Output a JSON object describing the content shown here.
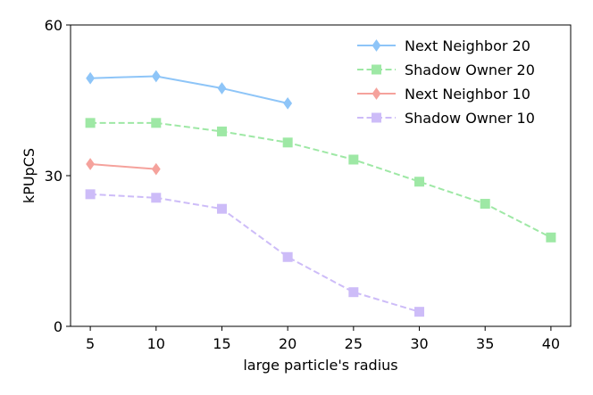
{
  "chart_data": {
    "type": "line",
    "xlabel": "large particle's radius",
    "ylabel": "kPUpCS",
    "xlim": [
      3.5,
      41.5
    ],
    "ylim": [
      0,
      60
    ],
    "xticks": [
      5,
      10,
      15,
      20,
      25,
      30,
      35,
      40
    ],
    "yticks": [
      0,
      30,
      60
    ],
    "grid": false,
    "legend_position": "top-right",
    "series": [
      {
        "name": "Next Neighbor 20",
        "color": "#8ec5f8",
        "marker": "diamond",
        "linestyle": "solid",
        "x": [
          5,
          10,
          15,
          20
        ],
        "y": [
          49.4,
          49.8,
          47.4,
          44.4
        ]
      },
      {
        "name": "Shadow Owner 20",
        "color": "#9ee8a5",
        "marker": "square",
        "linestyle": "dashed",
        "x": [
          5,
          10,
          15,
          20,
          25,
          30,
          35,
          40
        ],
        "y": [
          40.5,
          40.5,
          38.8,
          36.6,
          33.2,
          28.8,
          24.4,
          17.7
        ]
      },
      {
        "name": "Next Neighbor 10",
        "color": "#f5a29c",
        "marker": "diamond",
        "linestyle": "solid",
        "x": [
          5,
          10
        ],
        "y": [
          32.3,
          31.3
        ]
      },
      {
        "name": "Shadow Owner 10",
        "color": "#cdbcf8",
        "marker": "square",
        "linestyle": "dashed",
        "x": [
          5,
          10,
          15,
          20,
          25,
          30
        ],
        "y": [
          26.3,
          25.6,
          23.4,
          13.8,
          6.8,
          2.9
        ]
      }
    ]
  }
}
